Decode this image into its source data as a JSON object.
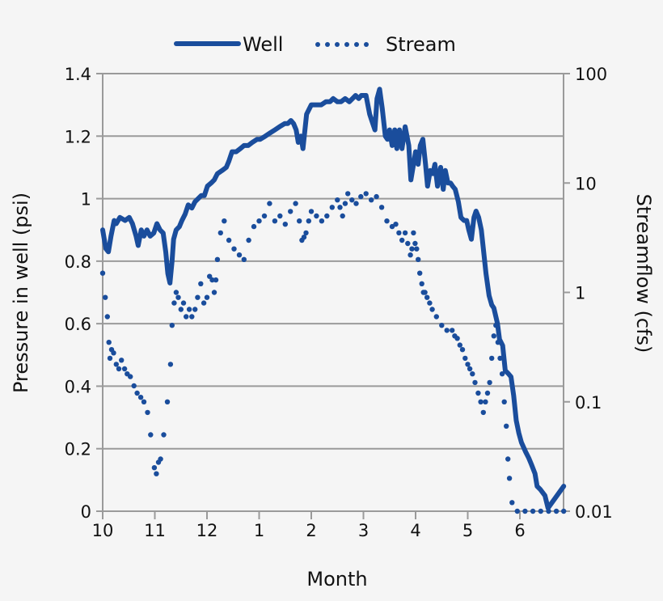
{
  "chart_data": {
    "type": "line",
    "title": "",
    "xlabel": "Month",
    "ylabel": "Pressure in well (psi)",
    "y2label": "Streamflow (cfs)",
    "x_ticks": [
      "10",
      "11",
      "12",
      "1",
      "2",
      "3",
      "4",
      "5",
      "6"
    ],
    "y_ticks": [
      "0",
      "0.2",
      "0.4",
      "0.6",
      "0.8",
      "1",
      "1.2",
      "1.4"
    ],
    "y2_ticks": [
      "0.01",
      "0.1",
      "1",
      "10",
      "100"
    ],
    "ylim": [
      0,
      1.4
    ],
    "y2lim": [
      0.01,
      100
    ],
    "y2_scale": "log",
    "xlim_month_index": [
      0,
      8.84
    ],
    "grid": "horizontal",
    "legend": {
      "position": "top",
      "entries": [
        {
          "name": "Well",
          "style": "solid"
        },
        {
          "name": "Stream",
          "style": "dotted"
        }
      ]
    },
    "colors": {
      "series": "#1a4d9c",
      "grid": "#9a9a9a",
      "background": "#f5f5f5"
    },
    "series": [
      {
        "name": "Well",
        "axis": "left",
        "style": "solid",
        "x_month_index": [
          0,
          0.06,
          0.11,
          0.16,
          0.22,
          0.26,
          0.33,
          0.43,
          0.51,
          0.57,
          0.64,
          0.68,
          0.74,
          0.79,
          0.85,
          0.91,
          0.98,
          1.04,
          1.1,
          1.16,
          1.21,
          1.25,
          1.29,
          1.33,
          1.36,
          1.41,
          1.47,
          1.52,
          1.58,
          1.64,
          1.71,
          1.77,
          1.83,
          1.89,
          1.95,
          2.01,
          2.08,
          2.14,
          2.2,
          2.29,
          2.37,
          2.42,
          2.48,
          2.56,
          2.64,
          2.71,
          2.79,
          2.87,
          2.96,
          3.02,
          3.12,
          3.21,
          3.3,
          3.39,
          3.49,
          3.55,
          3.61,
          3.66,
          3.71,
          3.75,
          3.8,
          3.84,
          3.91,
          4.0,
          4.09,
          4.19,
          4.28,
          4.36,
          4.42,
          4.5,
          4.57,
          4.65,
          4.73,
          4.79,
          4.85,
          4.91,
          4.96,
          5.0,
          5.05,
          5.12,
          5.16,
          5.22,
          5.26,
          5.31,
          5.36,
          5.42,
          5.46,
          5.5,
          5.55,
          5.6,
          5.64,
          5.69,
          5.74,
          5.8,
          5.87,
          5.91,
          5.97,
          6.0,
          6.05,
          6.09,
          6.14,
          6.19,
          6.23,
          6.28,
          6.33,
          6.37,
          6.42,
          6.48,
          6.53,
          6.57,
          6.62,
          6.67,
          6.71,
          6.76,
          6.82,
          6.87,
          6.93,
          6.98,
          7.02,
          7.07,
          7.12,
          7.16,
          7.21,
          7.26,
          7.3,
          7.35,
          7.41,
          7.46,
          7.5,
          7.57,
          7.61,
          7.67,
          7.72,
          7.78,
          7.83,
          7.88,
          7.93,
          7.98,
          8.03,
          8.11,
          8.17,
          8.22,
          8.29,
          8.33,
          8.39,
          8.48,
          8.54,
          8.84
        ],
        "values": [
          0.9,
          0.84,
          0.83,
          0.88,
          0.93,
          0.92,
          0.94,
          0.93,
          0.94,
          0.92,
          0.88,
          0.85,
          0.9,
          0.88,
          0.9,
          0.88,
          0.89,
          0.92,
          0.9,
          0.89,
          0.83,
          0.76,
          0.73,
          0.8,
          0.87,
          0.9,
          0.91,
          0.93,
          0.95,
          0.98,
          0.97,
          0.99,
          1.0,
          1.01,
          1.01,
          1.04,
          1.05,
          1.06,
          1.08,
          1.09,
          1.1,
          1.12,
          1.15,
          1.15,
          1.16,
          1.17,
          1.17,
          1.18,
          1.19,
          1.19,
          1.2,
          1.21,
          1.22,
          1.23,
          1.24,
          1.24,
          1.25,
          1.24,
          1.22,
          1.18,
          1.2,
          1.16,
          1.27,
          1.3,
          1.3,
          1.3,
          1.31,
          1.31,
          1.32,
          1.31,
          1.31,
          1.32,
          1.31,
          1.32,
          1.33,
          1.32,
          1.33,
          1.33,
          1.33,
          1.27,
          1.25,
          1.22,
          1.32,
          1.35,
          1.29,
          1.2,
          1.19,
          1.22,
          1.17,
          1.22,
          1.16,
          1.22,
          1.16,
          1.23,
          1.17,
          1.06,
          1.12,
          1.15,
          1.11,
          1.17,
          1.19,
          1.11,
          1.04,
          1.09,
          1.08,
          1.11,
          1.04,
          1.1,
          1.03,
          1.09,
          1.05,
          1.05,
          1.04,
          1.03,
          0.99,
          0.94,
          0.93,
          0.93,
          0.9,
          0.87,
          0.94,
          0.96,
          0.94,
          0.9,
          0.84,
          0.76,
          0.69,
          0.66,
          0.65,
          0.6,
          0.55,
          0.53,
          0.45,
          0.44,
          0.43,
          0.37,
          0.29,
          0.25,
          0.22,
          0.19,
          0.17,
          0.15,
          0.12,
          0.08,
          0.07,
          0.05,
          0.01,
          0.08,
          0.04,
          0.03,
          0.02,
          0.02
        ]
      },
      {
        "name": "Stream",
        "axis": "right",
        "style": "dotted",
        "x_month_index": [
          0,
          0.05,
          0.09,
          0.12,
          0.14,
          0.17,
          0.21,
          0.26,
          0.31,
          0.36,
          0.42,
          0.47,
          0.53,
          0.6,
          0.66,
          0.73,
          0.79,
          0.86,
          0.92,
          0.99,
          1.03,
          1.07,
          1.11,
          1.17,
          1.24,
          1.3,
          1.33,
          1.37,
          1.41,
          1.45,
          1.5,
          1.55,
          1.6,
          1.66,
          1.71,
          1.77,
          1.82,
          1.88,
          1.94,
          2.0,
          2.05,
          2.1,
          2.14,
          2.17,
          2.2,
          2.26,
          2.33,
          2.42,
          2.52,
          2.62,
          2.71,
          2.8,
          2.9,
          3.0,
          3.1,
          3.2,
          3.3,
          3.4,
          3.5,
          3.6,
          3.7,
          3.77,
          3.82,
          3.86,
          3.9,
          3.95,
          4.0,
          4.1,
          4.2,
          4.3,
          4.4,
          4.5,
          4.55,
          4.6,
          4.65,
          4.7,
          4.78,
          4.86,
          4.95,
          5.05,
          5.15,
          5.25,
          5.35,
          5.45,
          5.55,
          5.62,
          5.68,
          5.74,
          5.8,
          5.85,
          5.9,
          5.93,
          5.96,
          5.99,
          6.02,
          6.05,
          6.08,
          6.12,
          6.15,
          6.18,
          6.22,
          6.27,
          6.32,
          6.4,
          6.5,
          6.6,
          6.7,
          6.75,
          6.8,
          6.85,
          6.9,
          6.95,
          7.0,
          7.04,
          7.09,
          7.14,
          7.2,
          7.25,
          7.3,
          7.34,
          7.38,
          7.42,
          7.46,
          7.5,
          7.54,
          7.58,
          7.62,
          7.66,
          7.7,
          7.74,
          7.77,
          7.8,
          7.85,
          7.95,
          8.1,
          8.25,
          8.4,
          8.55,
          8.7,
          8.84
        ],
        "values": [
          1.5,
          0.9,
          0.6,
          0.35,
          0.25,
          0.3,
          0.28,
          0.22,
          0.2,
          0.24,
          0.2,
          0.18,
          0.17,
          0.14,
          0.12,
          0.11,
          0.1,
          0.08,
          0.05,
          0.025,
          0.022,
          0.028,
          0.03,
          0.05,
          0.1,
          0.22,
          0.5,
          0.8,
          1.0,
          0.9,
          0.7,
          0.8,
          0.6,
          0.7,
          0.6,
          0.7,
          0.9,
          1.2,
          0.8,
          0.9,
          1.4,
          1.3,
          1.0,
          1.3,
          2.0,
          3.5,
          4.5,
          3.0,
          2.5,
          2.2,
          2.0,
          3.0,
          4.0,
          4.5,
          5.0,
          6.5,
          4.5,
          5.0,
          4.2,
          5.5,
          6.5,
          4.5,
          3.0,
          3.2,
          3.5,
          4.5,
          5.5,
          5.0,
          4.5,
          5.0,
          6.0,
          7.0,
          6.0,
          5.0,
          6.5,
          8.0,
          7.0,
          6.5,
          7.5,
          8.0,
          7.0,
          7.5,
          6.0,
          4.5,
          4.0,
          4.2,
          3.5,
          3.0,
          3.5,
          2.8,
          2.2,
          2.5,
          3.5,
          2.8,
          2.5,
          2.0,
          1.5,
          1.2,
          1.0,
          1.0,
          0.9,
          0.8,
          0.7,
          0.6,
          0.5,
          0.45,
          0.45,
          0.4,
          0.38,
          0.33,
          0.3,
          0.25,
          0.22,
          0.2,
          0.18,
          0.15,
          0.12,
          0.1,
          0.08,
          0.1,
          0.12,
          0.15,
          0.25,
          0.4,
          0.5,
          0.35,
          0.25,
          0.18,
          0.1,
          0.06,
          0.03,
          0.02,
          0.012,
          0.01,
          0.01,
          0.01,
          0.01,
          0.01,
          0.01,
          0.01,
          0.01,
          0.01
        ]
      }
    ]
  }
}
